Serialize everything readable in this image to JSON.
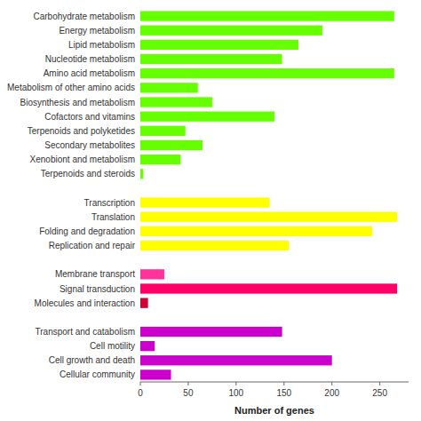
{
  "chart_data": {
    "type": "bar",
    "orientation": "horizontal",
    "categories": [
      "Carbohydrate metabolism",
      "Energy metabolism",
      "Lipid metabolism",
      "Nucleotide metabolism",
      "Amino acid metabolism",
      "Metabolism of other amino acids",
      "Biosynthesis and metabolism",
      "Cofactors and vitamins",
      "Terpenoids and polyketides",
      "Secondary metabolites",
      "Xenobiont and metabolism",
      "Terpenoids and steroids",
      null,
      "Transcription",
      "Translation",
      "Folding and degradation",
      "Replication and repair",
      null,
      "Membrane transport",
      "Signal transduction",
      "Molecules and interaction",
      null,
      "Transport and catabolism",
      "Cell motility",
      "Cell growth and death",
      "Cellular community"
    ],
    "values": [
      265,
      190,
      165,
      148,
      265,
      60,
      75,
      140,
      47,
      65,
      42,
      3,
      0,
      135,
      268,
      242,
      155,
      0,
      25,
      268,
      8,
      0,
      148,
      15,
      200,
      32
    ],
    "colors": [
      "#66ff00",
      "#66ff00",
      "#66ff00",
      "#66ff00",
      "#66ff00",
      "#66ff00",
      "#66ff00",
      "#66ff00",
      "#66ff00",
      "#66ff00",
      "#66ff00",
      "#66ff00",
      "#ffffff",
      "#ffff00",
      "#ffff00",
      "#ffff00",
      "#ffff00",
      "#ffffff",
      "#ff3399",
      "#ff0066",
      "#cc0033",
      "#ffffff",
      "#cc00cc",
      "#cc00cc",
      "#cc00cc",
      "#cc00cc"
    ],
    "xlim": [
      0,
      280
    ],
    "xticks": [
      0,
      50,
      100,
      150,
      200,
      250
    ],
    "xlabel": "Number of genes"
  }
}
